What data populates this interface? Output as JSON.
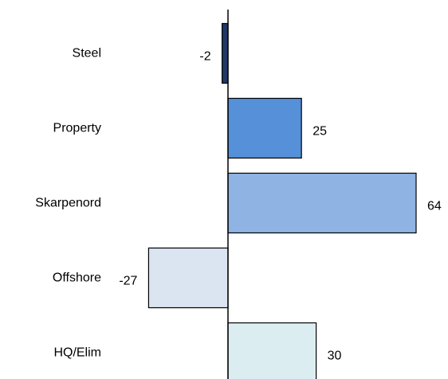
{
  "chart_data": {
    "type": "bar",
    "orientation": "horizontal",
    "categories": [
      "Steel",
      "Property",
      "Skarpenord",
      "Offshore",
      "HQ/Elim"
    ],
    "values": [
      -2,
      25,
      64,
      -27,
      30
    ],
    "data_labels": [
      "-2",
      "25",
      "64",
      "-27",
      "30"
    ],
    "colors": [
      "#1f3864",
      "#5590d8",
      "#8fb3e3",
      "#dbe4f1",
      "#dcedf2"
    ],
    "axis_color": "#000000",
    "title": "",
    "xlabel": "",
    "ylabel": "",
    "grid": false,
    "legend": "none"
  }
}
